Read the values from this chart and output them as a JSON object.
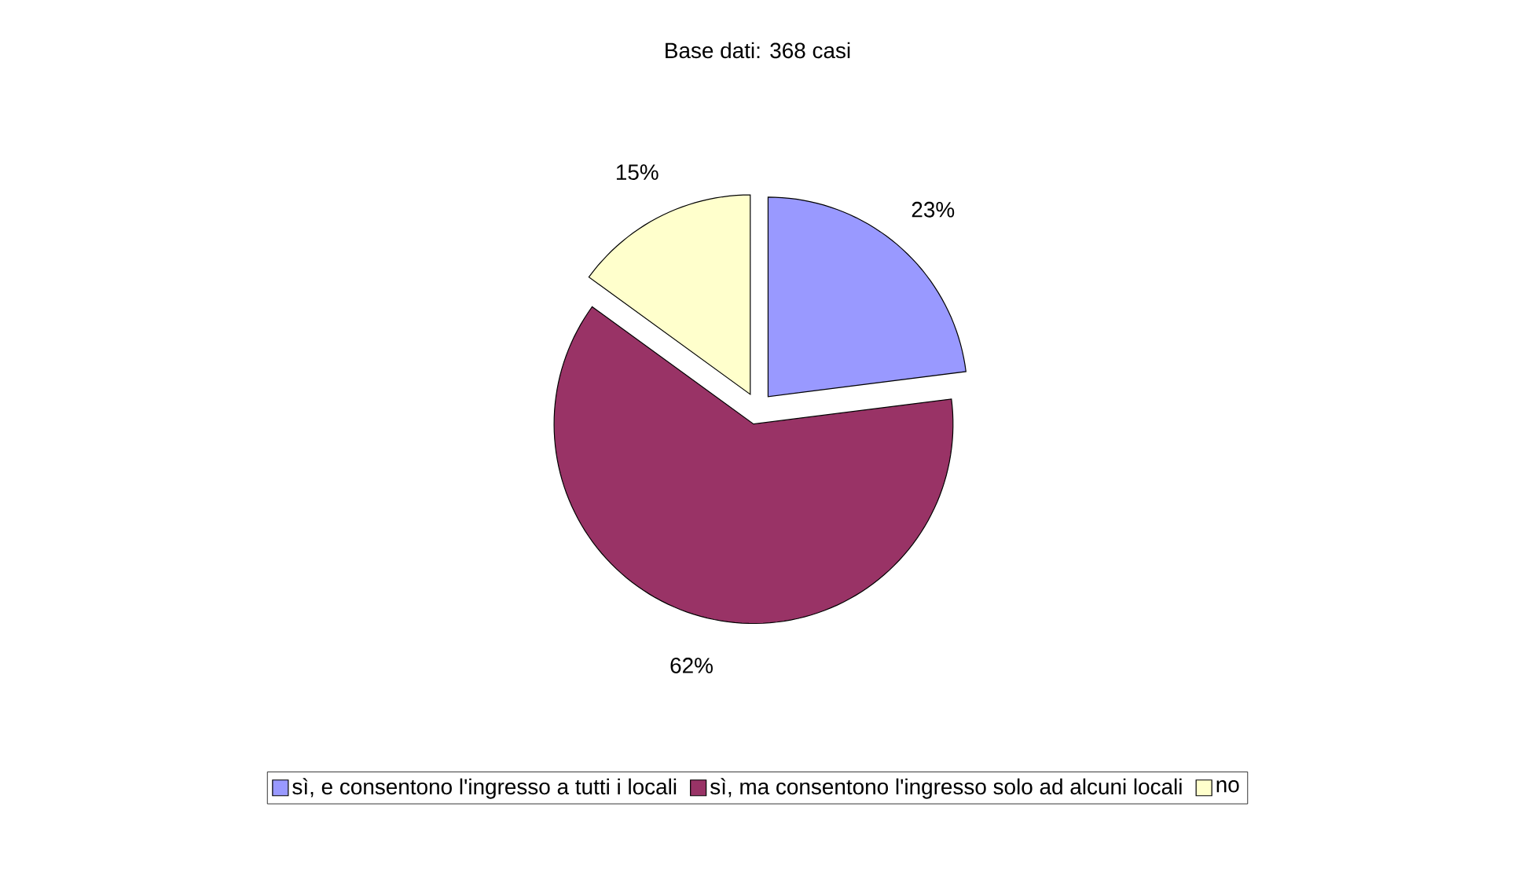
{
  "chart_data": {
    "type": "pie",
    "title": "Base dati: 368 casi",
    "categories": [
      "sì, e consentono l'ingresso a tutti i locali",
      "sì, ma consentono l'ingresso solo ad alcuni locali",
      "no"
    ],
    "values": [
      23,
      62,
      15
    ],
    "colors": [
      "#9999ff",
      "#993366",
      "#ffffcc"
    ],
    "value_labels": [
      "23%",
      "62%",
      "15%"
    ],
    "legend": "bottom"
  }
}
